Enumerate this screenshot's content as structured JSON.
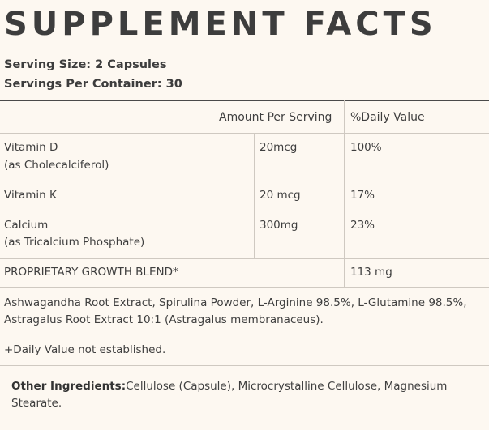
{
  "title": "SUPPLEMENT FACTS",
  "serving_size": "Serving Size: 2 Capsules",
  "servings_per_container": "Servings Per Container: 30",
  "header": {
    "amount": "Amount Per Serving",
    "daily": "%Daily Value"
  },
  "rows": [
    {
      "name": "Vitamin D",
      "sub": "(as Cholecalciferol)",
      "amount": "20mcg",
      "dv": "100%"
    },
    {
      "name": "Vitamin K",
      "sub": "",
      "amount": "20 mcg",
      "dv": "17%"
    },
    {
      "name": "Calcium",
      "sub": "(as Tricalcium Phosphate)",
      "amount": "300mg",
      "dv": "23%"
    }
  ],
  "blend": {
    "name": "PROPRIETARY GROWTH BLEND*",
    "dv": "113 mg"
  },
  "blend_ingredients": {
    "line1": "Ashwagandha Root Extract, Spirulina Powder, L-Arginine 98.5%, L-Glutamine 98.5%,",
    "line2": "Astragalus Root Extract 10:1 (Astragalus membranaceus)."
  },
  "footnote": "+Daily Value not established.",
  "other_ingredients": {
    "label": "Other Ingredients:",
    "text": "Cellulose (Capsule), Microcrystalline Cellulose, Magnesium Stearate."
  }
}
